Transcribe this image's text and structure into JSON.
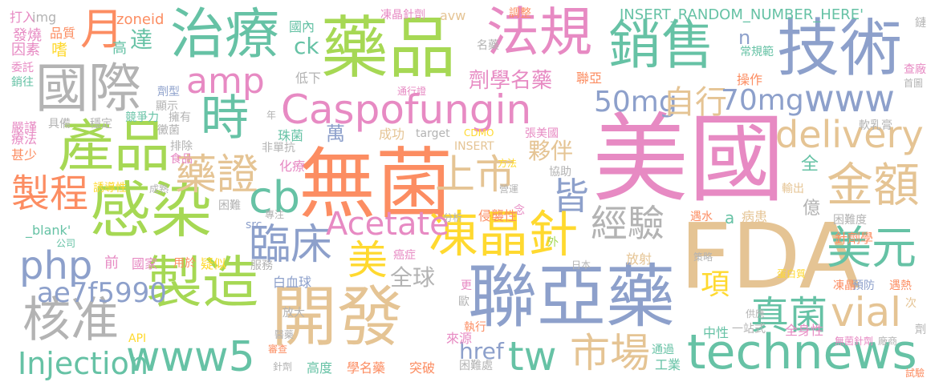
{
  "palette": {
    "pink": "#e78ac3",
    "green": "#a6d854",
    "teal": "#66c2a5",
    "orange": "#fc8d62",
    "blue": "#8da0cb",
    "sand": "#e5c494",
    "gray": "#b3b3b3",
    "yellow": "#ffd92f"
  },
  "words": [
    {
      "text": "美國",
      "color": "pink"
    },
    {
      "text": "FDA",
      "color": "sand"
    },
    {
      "text": "無菌",
      "color": "orange"
    },
    {
      "text": "聯亞藥",
      "color": "blue"
    },
    {
      "text": "藥品",
      "color": "green"
    },
    {
      "text": "開發",
      "color": "sand"
    },
    {
      "text": "Caspofungin",
      "color": "pink"
    },
    {
      "text": "感染",
      "color": "green"
    },
    {
      "text": "技術",
      "color": "blue"
    },
    {
      "text": "銷售",
      "color": "teal"
    },
    {
      "text": "治療",
      "color": "teal"
    },
    {
      "text": "法規",
      "color": "pink"
    },
    {
      "text": "國際",
      "color": "gray"
    },
    {
      "text": "產品",
      "color": "green"
    },
    {
      "text": "製造",
      "color": "green"
    },
    {
      "text": "technews",
      "color": "teal"
    },
    {
      "text": "凍晶針",
      "color": "yellow"
    },
    {
      "text": "www",
      "color": "blue"
    },
    {
      "text": "delivery",
      "color": "sand"
    },
    {
      "text": "時",
      "color": "teal"
    },
    {
      "text": "www5",
      "color": "teal"
    },
    {
      "text": "金額",
      "color": "sand"
    },
    {
      "text": "上市",
      "color": "sand"
    },
    {
      "text": "核准",
      "color": "gray"
    },
    {
      "text": "vial",
      "color": "sand"
    },
    {
      "text": "市場",
      "color": "sand"
    },
    {
      "text": "美元",
      "color": "teal"
    },
    {
      "text": "製程",
      "color": "orange"
    },
    {
      "text": "藥證",
      "color": "sand"
    },
    {
      "text": "臨床",
      "color": "blue"
    },
    {
      "text": "月",
      "color": "orange"
    },
    {
      "text": "php",
      "color": "blue"
    },
    {
      "text": "tw",
      "color": "teal"
    },
    {
      "text": "經驗",
      "color": "gray"
    },
    {
      "text": "皆",
      "color": "blue"
    },
    {
      "text": "cb",
      "color": "teal"
    },
    {
      "text": "Acetate",
      "color": "pink"
    },
    {
      "text": "美",
      "color": "yellow"
    },
    {
      "text": "amp",
      "color": "pink"
    },
    {
      "text": "真菌",
      "color": "teal"
    },
    {
      "text": "50mg",
      "color": "blue"
    },
    {
      "text": "自行",
      "color": "sand"
    },
    {
      "text": "70mg",
      "color": "blue"
    },
    {
      "text": "Injection",
      "color": "teal"
    },
    {
      "text": "ae7f5990",
      "color": "blue"
    },
    {
      "text": "項",
      "color": "yellow"
    },
    {
      "text": "全球",
      "color": "gray"
    },
    {
      "text": "夥伴",
      "color": "sand"
    },
    {
      "text": "劑學名藥",
      "color": "pink"
    },
    {
      "text": "ck",
      "color": "teal"
    },
    {
      "text": "href",
      "color": "blue"
    },
    {
      "text": "萬",
      "color": "blue"
    },
    {
      "text": "國內",
      "color": "teal"
    },
    {
      "text": "達",
      "color": "teal"
    },
    {
      "text": "INSERT_RANDOM_NUMBER_HERE'",
      "color": "teal"
    },
    {
      "text": "zoneid",
      "color": "orange"
    },
    {
      "text": "打入",
      "color": "pink"
    },
    {
      "text": "img",
      "color": "gray"
    },
    {
      "text": "凍晶針劑",
      "color": "pink"
    },
    {
      "text": "avw",
      "color": "sand"
    },
    {
      "text": "調整",
      "color": "orange"
    },
    {
      "text": "鏈",
      "color": "gray"
    },
    {
      "text": "發燒",
      "color": "pink"
    },
    {
      "text": "品質",
      "color": "orange"
    },
    {
      "text": "因素",
      "color": "pink"
    },
    {
      "text": "嗜",
      "color": "yellow"
    },
    {
      "text": "高",
      "color": "teal"
    },
    {
      "text": "名藥",
      "color": "gray"
    },
    {
      "text": "n",
      "color": "blue"
    },
    {
      "text": "常規範",
      "color": "teal"
    },
    {
      "text": "委託",
      "color": "pink"
    },
    {
      "text": "銷往",
      "color": "teal"
    },
    {
      "text": "劑型",
      "color": "blue"
    },
    {
      "text": "顯示",
      "color": "gray"
    },
    {
      "text": "擁有",
      "color": "gray"
    },
    {
      "text": "低下",
      "color": "gray"
    },
    {
      "text": "通行證",
      "color": "pink"
    },
    {
      "text": "聯亞",
      "color": "orange"
    },
    {
      "text": "操作",
      "color": "orange"
    },
    {
      "text": "查廠",
      "color": "pink"
    },
    {
      "text": "首圖",
      "color": "gray"
    },
    {
      "text": "嚴謹",
      "color": "pink"
    },
    {
      "text": "具備",
      "color": "gray"
    },
    {
      "text": "穩定",
      "color": "gray"
    },
    {
      "text": "競爭力",
      "color": "teal"
    },
    {
      "text": "黴菌",
      "color": "gray"
    },
    {
      "text": "年",
      "color": "gray"
    },
    {
      "text": "軟乳膏",
      "color": "gray"
    },
    {
      "text": "療法",
      "color": "pink"
    },
    {
      "text": "甚少",
      "color": "orange"
    },
    {
      "text": "排除",
      "color": "gray"
    },
    {
      "text": "食品",
      "color": "pink"
    },
    {
      "text": "非單抗",
      "color": "gray"
    },
    {
      "text": "珠菌",
      "color": "teal"
    },
    {
      "text": "成功",
      "color": "sand"
    },
    {
      "text": "target",
      "color": "gray"
    },
    {
      "text": "CDMO",
      "color": "yellow"
    },
    {
      "text": "張美國",
      "color": "pink"
    },
    {
      "text": "INSERT",
      "color": "sand"
    },
    {
      "text": "方法",
      "color": "yellow"
    },
    {
      "text": "化療",
      "color": "pink"
    },
    {
      "text": "協助",
      "color": "gray"
    },
    {
      "text": "全",
      "color": "teal"
    },
    {
      "text": "誘導性",
      "color": "yellow"
    },
    {
      "text": "成熟",
      "color": "gray"
    },
    {
      "text": "營運",
      "color": "gray"
    },
    {
      "text": "輸出",
      "color": "sand"
    },
    {
      "text": "困難",
      "color": "gray"
    },
    {
      "text": "a",
      "color": "teal"
    },
    {
      "text": "遇水",
      "color": "orange"
    },
    {
      "text": "病患",
      "color": "sand"
    },
    {
      "text": "億",
      "color": "gray"
    },
    {
      "text": "念",
      "color": "pink"
    },
    {
      "text": "侵襲性",
      "color": "orange"
    },
    {
      "text": "困難度",
      "color": "gray"
    },
    {
      "text": "分析",
      "color": "gray"
    },
    {
      "text": "_blank'",
      "color": "teal"
    },
    {
      "text": "專注",
      "color": "gray"
    },
    {
      "text": "src",
      "color": "blue"
    },
    {
      "text": "針劑學",
      "color": "orange"
    },
    {
      "text": "公司",
      "color": "teal"
    },
    {
      "text": "外",
      "color": "green"
    },
    {
      "text": "癌症",
      "color": "pink"
    },
    {
      "text": "前",
      "color": "pink"
    },
    {
      "text": "國家",
      "color": "pink"
    },
    {
      "text": "用於",
      "color": "orange"
    },
    {
      "text": "疑似",
      "color": "yellow"
    },
    {
      "text": "服務",
      "color": "gray"
    },
    {
      "text": "放射",
      "color": "sand"
    },
    {
      "text": "策略",
      "color": "gray"
    },
    {
      "text": "白血球",
      "color": "blue"
    },
    {
      "text": "日本",
      "color": "gray"
    },
    {
      "text": "蛋白質",
      "color": "yellow"
    },
    {
      "text": "凍晶",
      "color": "orange"
    },
    {
      "text": "預防",
      "color": "blue"
    },
    {
      "text": "遇熱",
      "color": "orange"
    },
    {
      "text": "更",
      "color": "pink"
    },
    {
      "text": "歐",
      "color": "gray"
    },
    {
      "text": "放大",
      "color": "gray"
    },
    {
      "text": "供應",
      "color": "gray"
    },
    {
      "text": "次",
      "color": "sand"
    },
    {
      "text": "API",
      "color": "yellow"
    },
    {
      "text": "執行",
      "color": "orange"
    },
    {
      "text": "中性",
      "color": "teal"
    },
    {
      "text": "一站式",
      "color": "gray"
    },
    {
      "text": "醫藥",
      "color": "gray"
    },
    {
      "text": "來源",
      "color": "pink"
    },
    {
      "text": "全身性",
      "color": "pink"
    },
    {
      "text": "審查",
      "color": "orange"
    },
    {
      "text": "通過",
      "color": "teal"
    },
    {
      "text": "無菌針劑",
      "color": "pink"
    },
    {
      "text": "廠商",
      "color": "gray"
    },
    {
      "text": "劑",
      "color": "gray"
    },
    {
      "text": "針劑",
      "color": "gray"
    },
    {
      "text": "高度",
      "color": "teal"
    },
    {
      "text": "學名藥",
      "color": "orange"
    },
    {
      "text": "突破",
      "color": "orange"
    },
    {
      "text": "困難處",
      "color": "gray"
    },
    {
      "text": "工業",
      "color": "teal"
    },
    {
      "text": "試驗",
      "color": "orange"
    }
  ]
}
